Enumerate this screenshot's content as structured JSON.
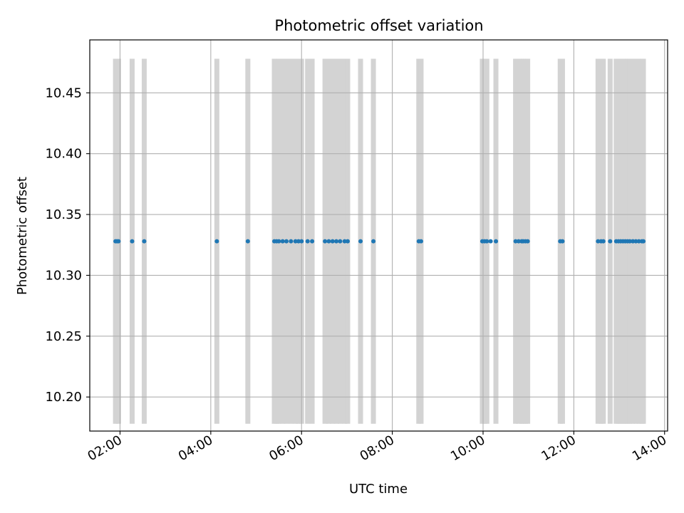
{
  "chart_data": {
    "type": "scatter",
    "title": "Photometric offset variation",
    "xlabel": "UTC time",
    "ylabel": "Photometric offset",
    "x_tick_labels": [
      "02:00",
      "04:00",
      "06:00",
      "08:00",
      "10:00",
      "12:00",
      "14:00"
    ],
    "x_tick_values": [
      "02:00",
      "04:00",
      "06:00",
      "08:00",
      "10:00",
      "12:00",
      "14:00"
    ],
    "y_tick_labels": [
      "10.20",
      "10.25",
      "10.30",
      "10.35",
      "10.40",
      "10.45"
    ],
    "y_tick_values": [
      10.2,
      10.25,
      10.3,
      10.35,
      10.4,
      10.45
    ],
    "xlim": [
      "01:20",
      "14:04"
    ],
    "ylim": [
      10.172,
      10.4935
    ],
    "grid": true,
    "series": [
      {
        "color": "#1f77b4",
        "x": [
          "01:54",
          "01:56",
          "01:58",
          "02:16",
          "02:32",
          "04:08",
          "04:49",
          "05:24",
          "05:27",
          "05:30",
          "05:35",
          "05:40",
          "05:46",
          "05:52",
          "05:56",
          "06:00",
          "06:08",
          "06:14",
          "06:31",
          "06:36",
          "06:41",
          "06:46",
          "06:51",
          "06:57",
          "07:01",
          "07:18",
          "07:35",
          "08:35",
          "08:38",
          "09:59",
          "10:02",
          "10:05",
          "10:10",
          "10:17",
          "10:43",
          "10:47",
          "10:51",
          "10:53",
          "10:56",
          "10:59",
          "11:42",
          "11:45",
          "12:32",
          "12:36",
          "12:39",
          "12:48",
          "12:56",
          "12:59",
          "13:02",
          "13:05",
          "13:08",
          "13:11",
          "13:14",
          "13:18",
          "13:22",
          "13:26",
          "13:30",
          "13:32"
        ],
        "y": [
          10.328,
          10.328,
          10.328,
          10.328,
          10.328,
          10.328,
          10.328,
          10.328,
          10.328,
          10.328,
          10.328,
          10.328,
          10.328,
          10.328,
          10.328,
          10.328,
          10.328,
          10.328,
          10.328,
          10.328,
          10.328,
          10.328,
          10.328,
          10.328,
          10.328,
          10.328,
          10.328,
          10.328,
          10.328,
          10.328,
          10.328,
          10.328,
          10.328,
          10.328,
          10.328,
          10.328,
          10.328,
          10.328,
          10.328,
          10.328,
          10.328,
          10.328,
          10.328,
          10.328,
          10.328,
          10.328,
          10.328,
          10.328,
          10.328,
          10.328,
          10.328,
          10.328,
          10.328,
          10.328,
          10.328,
          10.328,
          10.328,
          10.328
        ]
      }
    ],
    "vspans": {
      "color": "#d3d3d3",
      "y_range": [
        10.178,
        10.478
      ],
      "times": [
        "01:54",
        "01:58",
        "02:16",
        "02:32",
        "04:08",
        "04:49",
        "05:24",
        "05:27",
        "05:30",
        "05:35",
        "05:40",
        "05:46",
        "05:52",
        "05:56",
        "06:00",
        "06:08",
        "06:14",
        "06:31",
        "06:36",
        "06:41",
        "06:46",
        "06:51",
        "06:57",
        "07:01",
        "07:18",
        "07:35",
        "08:35",
        "08:38",
        "09:59",
        "10:02",
        "10:05",
        "10:17",
        "10:43",
        "10:47",
        "10:51",
        "10:53",
        "10:56",
        "10:59",
        "11:42",
        "11:45",
        "12:32",
        "12:36",
        "12:39",
        "12:48",
        "12:56",
        "12:59",
        "13:02",
        "13:05",
        "13:08",
        "13:11",
        "13:14",
        "13:18",
        "13:22",
        "13:26",
        "13:30",
        "13:32"
      ]
    }
  }
}
